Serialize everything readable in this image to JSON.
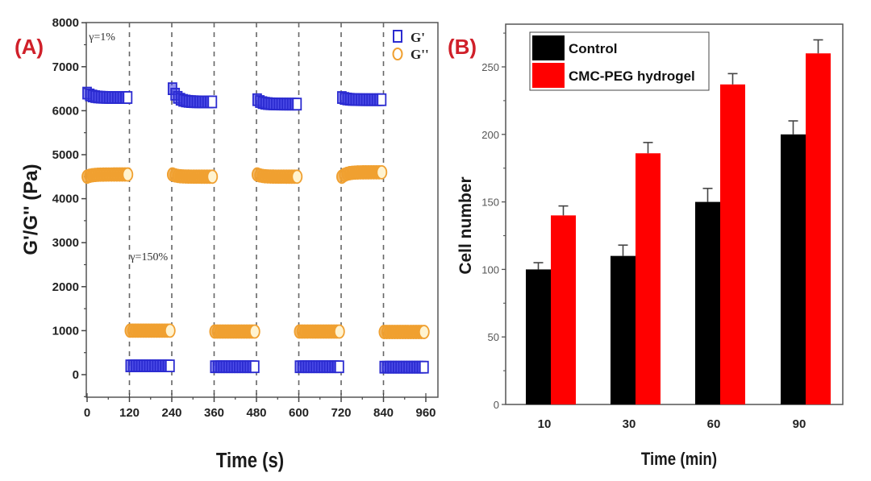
{
  "chart_data": [
    {
      "id": "A",
      "type": "scatter",
      "panel_label": "(A)",
      "title": "",
      "xlabel": "Time (s)",
      "ylabel": "G'/G'' (Pa)",
      "xlim": [
        0,
        960
      ],
      "ylim": [
        -500,
        8000
      ],
      "xticks": [
        0,
        120,
        240,
        360,
        480,
        600,
        720,
        840,
        960
      ],
      "yticks": [
        0,
        1000,
        2000,
        3000,
        4000,
        5000,
        6000,
        7000,
        8000
      ],
      "grid": false,
      "dashed_vlines": [
        120,
        240,
        360,
        480,
        600,
        720,
        840
      ],
      "annotations": [
        {
          "text": "γ=1%",
          "x": 5,
          "y": 7600
        },
        {
          "text": "γ=150%",
          "x": 122,
          "y": 2600
        }
      ],
      "legend": {
        "placement": "top-right",
        "entries": [
          "G'",
          "G''"
        ]
      },
      "series": [
        {
          "name": "G'",
          "marker": "square",
          "color": "#2b2bd0",
          "segments": [
            {
              "x_start": 0,
              "x_end": 115,
              "y_start": 6400,
              "y_end": 6300
            },
            {
              "x_start": 122,
              "x_end": 235,
              "y_start": 200,
              "y_end": 200
            },
            {
              "x_start": 242,
              "x_end": 355,
              "y_start": 6500,
              "y_end": 6200
            },
            {
              "x_start": 362,
              "x_end": 475,
              "y_start": 180,
              "y_end": 180
            },
            {
              "x_start": 482,
              "x_end": 595,
              "y_start": 6250,
              "y_end": 6150
            },
            {
              "x_start": 602,
              "x_end": 715,
              "y_start": 180,
              "y_end": 180
            },
            {
              "x_start": 722,
              "x_end": 835,
              "y_start": 6300,
              "y_end": 6250
            },
            {
              "x_start": 842,
              "x_end": 955,
              "y_start": 170,
              "y_end": 170
            }
          ]
        },
        {
          "name": "G''",
          "marker": "circle",
          "color": "#f0a030",
          "segments": [
            {
              "x_start": 0,
              "x_end": 115,
              "y_start": 4500,
              "y_end": 4550
            },
            {
              "x_start": 122,
              "x_end": 235,
              "y_start": 1000,
              "y_end": 1000
            },
            {
              "x_start": 242,
              "x_end": 355,
              "y_start": 4550,
              "y_end": 4500
            },
            {
              "x_start": 362,
              "x_end": 475,
              "y_start": 980,
              "y_end": 980
            },
            {
              "x_start": 482,
              "x_end": 595,
              "y_start": 4550,
              "y_end": 4500
            },
            {
              "x_start": 602,
              "x_end": 715,
              "y_start": 980,
              "y_end": 980
            },
            {
              "x_start": 722,
              "x_end": 835,
              "y_start": 4500,
              "y_end": 4600
            },
            {
              "x_start": 842,
              "x_end": 955,
              "y_start": 970,
              "y_end": 970
            }
          ]
        }
      ]
    },
    {
      "id": "B",
      "type": "bar",
      "panel_label": "(B)",
      "title": "",
      "xlabel": "Time (min)",
      "ylabel": "Cell number",
      "categories": [
        "10",
        "30",
        "60",
        "90"
      ],
      "ylim": [
        0,
        275
      ],
      "yticks": [
        0,
        50,
        100,
        150,
        200,
        250
      ],
      "grid": false,
      "legend": {
        "placement": "top-left",
        "entries": [
          "Control",
          "CMC-PEG hydrogel"
        ]
      },
      "series": [
        {
          "name": "Control",
          "color": "#000000",
          "values": [
            100,
            110,
            150,
            200
          ],
          "errors": [
            5,
            8,
            10,
            10
          ]
        },
        {
          "name": "CMC-PEG hydrogel",
          "color": "#ff0000",
          "values": [
            140,
            186,
            237,
            260
          ],
          "errors": [
            7,
            8,
            8,
            10
          ]
        }
      ]
    }
  ]
}
